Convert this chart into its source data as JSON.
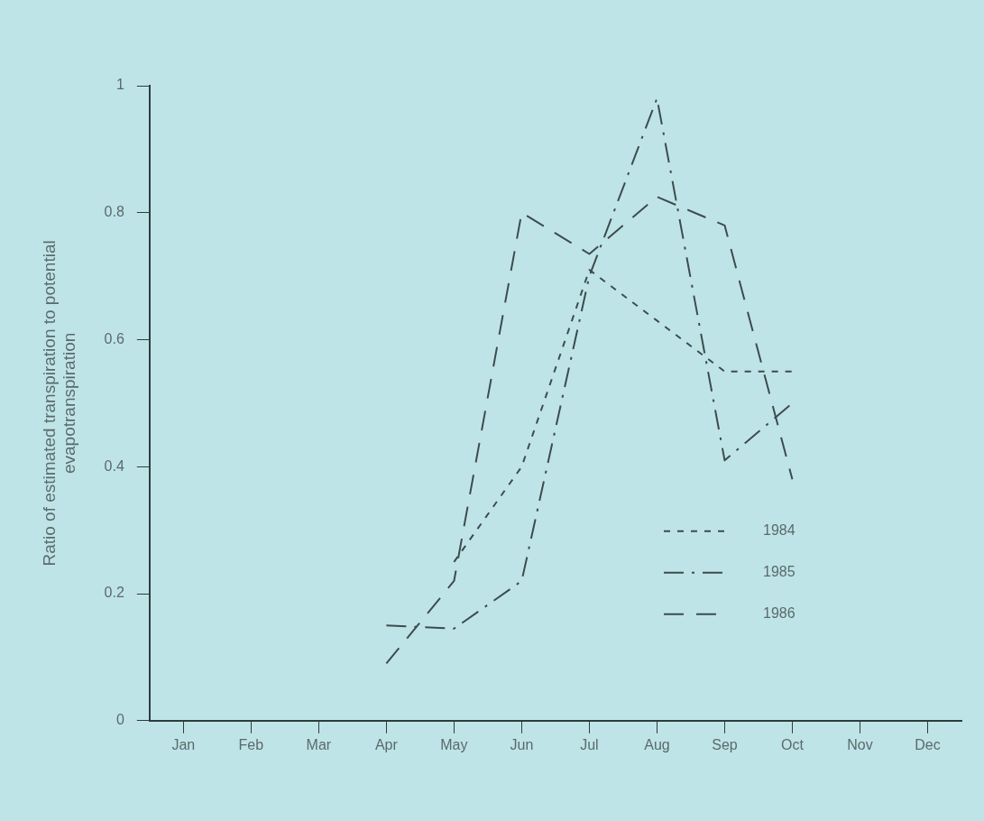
{
  "chart_data": {
    "type": "line",
    "ylabel": "Ratio of estimated transpiration to potential evapotranspiration",
    "categories": [
      "Jan",
      "Feb",
      "Mar",
      "Apr",
      "May",
      "Jun",
      "Jul",
      "Aug",
      "Sep",
      "Oct",
      "Nov",
      "Dec"
    ],
    "series": [
      {
        "name": "1984",
        "color": "#3c4c4e",
        "line_style": "dotted",
        "values": [
          null,
          null,
          null,
          null,
          0.25,
          0.4,
          0.71,
          0.63,
          0.55,
          0.55,
          null,
          null
        ]
      },
      {
        "name": "1985",
        "color": "#3c4c4e",
        "line_style": "dashdot",
        "values": [
          null,
          null,
          null,
          0.15,
          0.145,
          0.22,
          0.7,
          0.98,
          0.41,
          0.5,
          null,
          null
        ]
      },
      {
        "name": "1986",
        "color": "#3c4c4e",
        "line_style": "dashed",
        "values": [
          null,
          null,
          null,
          0.09,
          0.22,
          0.8,
          0.735,
          0.825,
          0.78,
          0.38,
          null,
          null
        ]
      }
    ],
    "ylim": [
      0,
      1
    ],
    "yticks": [
      0,
      0.2,
      0.4,
      0.6,
      0.8,
      1
    ],
    "grid": false,
    "legend": "bottom right",
    "marker": "none"
  }
}
